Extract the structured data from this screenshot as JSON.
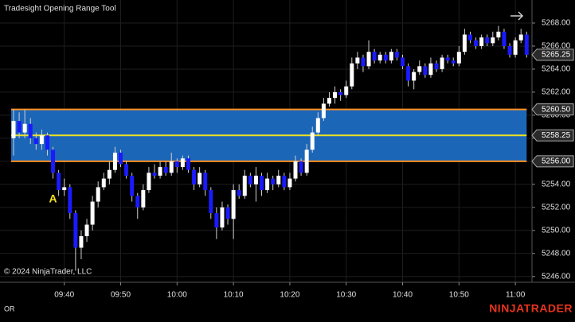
{
  "chart_data": {
    "type": "candlestick",
    "title": "Tradesight Opening Range Tool",
    "copyright": "© 2024 NinjaTrader, LLC",
    "annotation": "A",
    "annotation_at": "09:38",
    "footer_left": "OR",
    "brand": "NINJATRADER",
    "up_color": "#ffffff",
    "down_color": "#1a1aff",
    "wick_color": "#d0d0d0",
    "grid": true,
    "x": [
      "09:31",
      "09:32",
      "09:33",
      "09:34",
      "09:35",
      "09:36",
      "09:37",
      "09:38",
      "09:39",
      "09:40",
      "09:41",
      "09:42",
      "09:43",
      "09:44",
      "09:45",
      "09:46",
      "09:47",
      "09:48",
      "09:49",
      "09:50",
      "09:51",
      "09:52",
      "09:53",
      "09:54",
      "09:55",
      "09:56",
      "09:57",
      "09:58",
      "09:59",
      "10:00",
      "10:01",
      "10:02",
      "10:03",
      "10:04",
      "10:05",
      "10:06",
      "10:07",
      "10:08",
      "10:09",
      "10:10",
      "10:11",
      "10:12",
      "10:13",
      "10:14",
      "10:15",
      "10:16",
      "10:17",
      "10:18",
      "10:19",
      "10:20",
      "10:21",
      "10:22",
      "10:23",
      "10:24",
      "10:25",
      "10:26",
      "10:27",
      "10:28",
      "10:29",
      "10:30",
      "10:31",
      "10:32",
      "10:33",
      "10:34",
      "10:35",
      "10:36",
      "10:37",
      "10:38",
      "10:39",
      "10:40",
      "10:41",
      "10:42",
      "10:43",
      "10:44",
      "10:45",
      "10:46",
      "10:47",
      "10:48",
      "10:49",
      "10:50",
      "10:51",
      "10:52",
      "10:53",
      "10:54",
      "10:55",
      "10:56",
      "10:57",
      "10:58",
      "10:59",
      "11:00",
      "11:01",
      "11:02"
    ],
    "ohlc": [
      [
        5258,
        5260.5,
        5256.5,
        5259.5
      ],
      [
        5259.5,
        5260.25,
        5258,
        5258.5
      ],
      [
        5258.5,
        5260.5,
        5258,
        5259.25
      ],
      [
        5259.25,
        5259.75,
        5257.5,
        5258
      ],
      [
        5258,
        5258.5,
        5257,
        5257.5
      ],
      [
        5257.5,
        5258.75,
        5257,
        5258.25
      ],
      [
        5258.25,
        5258.5,
        5256.5,
        5257
      ],
      [
        5257,
        5257.25,
        5254.5,
        5255
      ],
      [
        5255,
        5255.25,
        5253,
        5253.5
      ],
      [
        5253.5,
        5254.5,
        5253,
        5253.75
      ],
      [
        5253.75,
        5254,
        5251,
        5251.5
      ],
      [
        5251.5,
        5251.75,
        5246.5,
        5248.5
      ],
      [
        5248.5,
        5250,
        5247.5,
        5249.5
      ],
      [
        5249.5,
        5251,
        5249,
        5250.5
      ],
      [
        5250.5,
        5253,
        5250,
        5252.5
      ],
      [
        5252.5,
        5254.25,
        5252,
        5253.75
      ],
      [
        5253.75,
        5255,
        5253.5,
        5254.5
      ],
      [
        5254.5,
        5256,
        5254,
        5255.25
      ],
      [
        5255.25,
        5257.25,
        5255,
        5256.75
      ],
      [
        5256.75,
        5257,
        5255.5,
        5255.75
      ],
      [
        5255.75,
        5256,
        5254.5,
        5254.75
      ],
      [
        5254.75,
        5255,
        5252.5,
        5253
      ],
      [
        5253,
        5253.25,
        5251,
        5252
      ],
      [
        5252,
        5254,
        5251.75,
        5253.5
      ],
      [
        5253.5,
        5255.5,
        5253.25,
        5255
      ],
      [
        5255,
        5255.75,
        5254.5,
        5254.75
      ],
      [
        5254.75,
        5256,
        5254.5,
        5255.5
      ],
      [
        5255.5,
        5256,
        5254.75,
        5255
      ],
      [
        5255,
        5256.75,
        5254.75,
        5256
      ],
      [
        5256,
        5256.25,
        5255,
        5255.5
      ],
      [
        5255.5,
        5256.5,
        5255.25,
        5256.25
      ],
      [
        5256.25,
        5256.5,
        5255,
        5255.25
      ],
      [
        5255.25,
        5255.5,
        5253.5,
        5254
      ],
      [
        5254,
        5255.5,
        5253.75,
        5255
      ],
      [
        5255,
        5255.25,
        5253,
        5253.5
      ],
      [
        5253.5,
        5253.75,
        5251,
        5251.5
      ],
      [
        5251.5,
        5252,
        5249.25,
        5250.25
      ],
      [
        5250.25,
        5252.5,
        5250,
        5252
      ],
      [
        5252,
        5252.25,
        5250.5,
        5251
      ],
      [
        5251,
        5254,
        5249.25,
        5253.5
      ],
      [
        5253.5,
        5254,
        5252.75,
        5253
      ],
      [
        5253,
        5255.25,
        5252.75,
        5254.75
      ],
      [
        5254.75,
        5255,
        5253.75,
        5254
      ],
      [
        5254,
        5255.5,
        5252.5,
        5254.75
      ],
      [
        5254.75,
        5255,
        5253,
        5253.5
      ],
      [
        5253.5,
        5255,
        5253.25,
        5254.5
      ],
      [
        5254.5,
        5254.75,
        5253.5,
        5254
      ],
      [
        5254,
        5255.25,
        5253.75,
        5254.75
      ],
      [
        5254.75,
        5255,
        5253.5,
        5253.75
      ],
      [
        5253.75,
        5255,
        5253.5,
        5254.5
      ],
      [
        5254.5,
        5256.5,
        5254.25,
        5256
      ],
      [
        5256,
        5256.25,
        5254.75,
        5255
      ],
      [
        5255,
        5257.5,
        5254.75,
        5257
      ],
      [
        5257,
        5259,
        5256.75,
        5258.5
      ],
      [
        5258.5,
        5260.25,
        5258.25,
        5259.75
      ],
      [
        5259.75,
        5261.5,
        5259.5,
        5261
      ],
      [
        5261,
        5262,
        5260.75,
        5261.5
      ],
      [
        5261.5,
        5262.5,
        5261,
        5262
      ],
      [
        5262,
        5262.25,
        5261.25,
        5261.75
      ],
      [
        5261.75,
        5263,
        5261.5,
        5262.5
      ],
      [
        5262.5,
        5265,
        5262.25,
        5264.5
      ],
      [
        5264.5,
        5265.5,
        5264,
        5265
      ],
      [
        5265,
        5265.25,
        5263.75,
        5264.25
      ],
      [
        5264.25,
        5266.5,
        5264,
        5265.5
      ],
      [
        5265.5,
        5265.75,
        5264.5,
        5264.75
      ],
      [
        5264.75,
        5265.5,
        5264.5,
        5265.25
      ],
      [
        5265.25,
        5265.5,
        5264.5,
        5264.75
      ],
      [
        5264.75,
        5265.75,
        5264.5,
        5265.5
      ],
      [
        5265.5,
        5265.75,
        5264.75,
        5265
      ],
      [
        5265,
        5265.25,
        5264,
        5264.25
      ],
      [
        5264.25,
        5264.5,
        5262.5,
        5263
      ],
      [
        5263,
        5264,
        5262.25,
        5263.75
      ],
      [
        5263.75,
        5264.75,
        5263.5,
        5264.25
      ],
      [
        5264.25,
        5264.5,
        5263.25,
        5263.5
      ],
      [
        5263.5,
        5265,
        5263.25,
        5264.5
      ],
      [
        5264.5,
        5264.75,
        5263.75,
        5264
      ],
      [
        5264,
        5265.25,
        5263.75,
        5265
      ],
      [
        5265,
        5265.25,
        5264.5,
        5264.75
      ],
      [
        5264.75,
        5265,
        5264.25,
        5264.5
      ],
      [
        5264.5,
        5266,
        5264.25,
        5265.5
      ],
      [
        5265.5,
        5267.5,
        5265.25,
        5267
      ],
      [
        5267,
        5267.25,
        5266.25,
        5266.5
      ],
      [
        5266.5,
        5266.75,
        5265.75,
        5266
      ],
      [
        5266,
        5267,
        5265.75,
        5266.75
      ],
      [
        5266.75,
        5267,
        5266,
        5266.25
      ],
      [
        5266.25,
        5267.25,
        5266,
        5266.75
      ],
      [
        5266.75,
        5267.75,
        5266.5,
        5267.25
      ],
      [
        5267.25,
        5267.5,
        5265.75,
        5266
      ],
      [
        5266,
        5266.25,
        5265,
        5265.25
      ],
      [
        5265.25,
        5266.75,
        5265,
        5266.5
      ],
      [
        5266.5,
        5267.5,
        5266.25,
        5267
      ],
      [
        5267,
        5267.25,
        5265,
        5265.25
      ]
    ],
    "ylim": [
      5245.5,
      5270
    ],
    "yticks": [
      {
        "value": 5246,
        "label": "5246.00"
      },
      {
        "value": 5248,
        "label": "5248.00"
      },
      {
        "value": 5250,
        "label": "5250.00"
      },
      {
        "value": 5252,
        "label": "5252.00"
      },
      {
        "value": 5254,
        "label": "5254.00"
      },
      {
        "value": 5256,
        "label": "5256.00"
      },
      {
        "value": 5258,
        "label": "5258.00"
      },
      {
        "value": 5260,
        "label": "5260.00"
      },
      {
        "value": 5262,
        "label": "5262.00"
      },
      {
        "value": 5264,
        "label": "5264.00"
      },
      {
        "value": 5266,
        "label": "5266.00"
      },
      {
        "value": 5268,
        "label": "5268.00"
      }
    ],
    "xticks": [
      "09:40",
      "09:50",
      "10:00",
      "10:10",
      "10:20",
      "10:30",
      "10:40",
      "10:50",
      "11:00"
    ],
    "opening_range": {
      "high": 5260.5,
      "mid": 5258.25,
      "low": 5256,
      "fill": "#1c66b8",
      "edge_color": "#ff9020",
      "mid_color": "#f0e020"
    },
    "price_markers": [
      {
        "value": 5265.25,
        "label": "5265.25"
      },
      {
        "value": 5260.5,
        "label": "5260.50"
      },
      {
        "value": 5258.25,
        "label": "5258.25"
      },
      {
        "value": 5256,
        "label": "5256.00"
      }
    ]
  }
}
